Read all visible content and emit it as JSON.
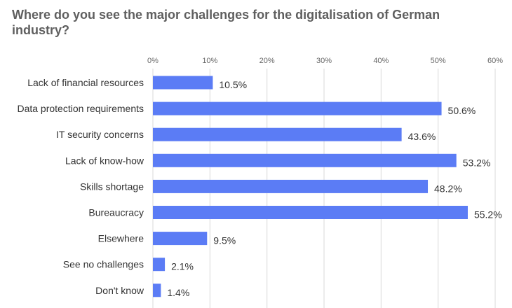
{
  "chart_data": {
    "type": "bar",
    "orientation": "horizontal",
    "title": "Where do you see the major challenges for the digitalisation of German industry?",
    "categories": [
      "Lack of financial resources",
      "Data protection requirements",
      "IT security concerns",
      "Lack of know-how",
      "Skills shortage",
      "Bureaucracy",
      "Elsewhere",
      "See no challenges",
      "Don't know"
    ],
    "values": [
      10.5,
      50.6,
      43.6,
      53.2,
      48.2,
      55.2,
      9.5,
      2.1,
      1.4
    ],
    "data_labels": [
      "10.5%",
      "50.6%",
      "43.6%",
      "53.2%",
      "48.2%",
      "55.2%",
      "9.5%",
      "2.1%",
      "1.4%"
    ],
    "xlim": [
      0,
      60
    ],
    "x_ticks": [
      0,
      10,
      20,
      30,
      40,
      50,
      60
    ],
    "x_tick_labels": [
      "0%",
      "10%",
      "20%",
      "30%",
      "40%",
      "50%",
      "60%"
    ],
    "x_axis_position": "top",
    "grid": true,
    "bar_color": "#5b7cf5",
    "grid_color": "#d9d9d9"
  }
}
